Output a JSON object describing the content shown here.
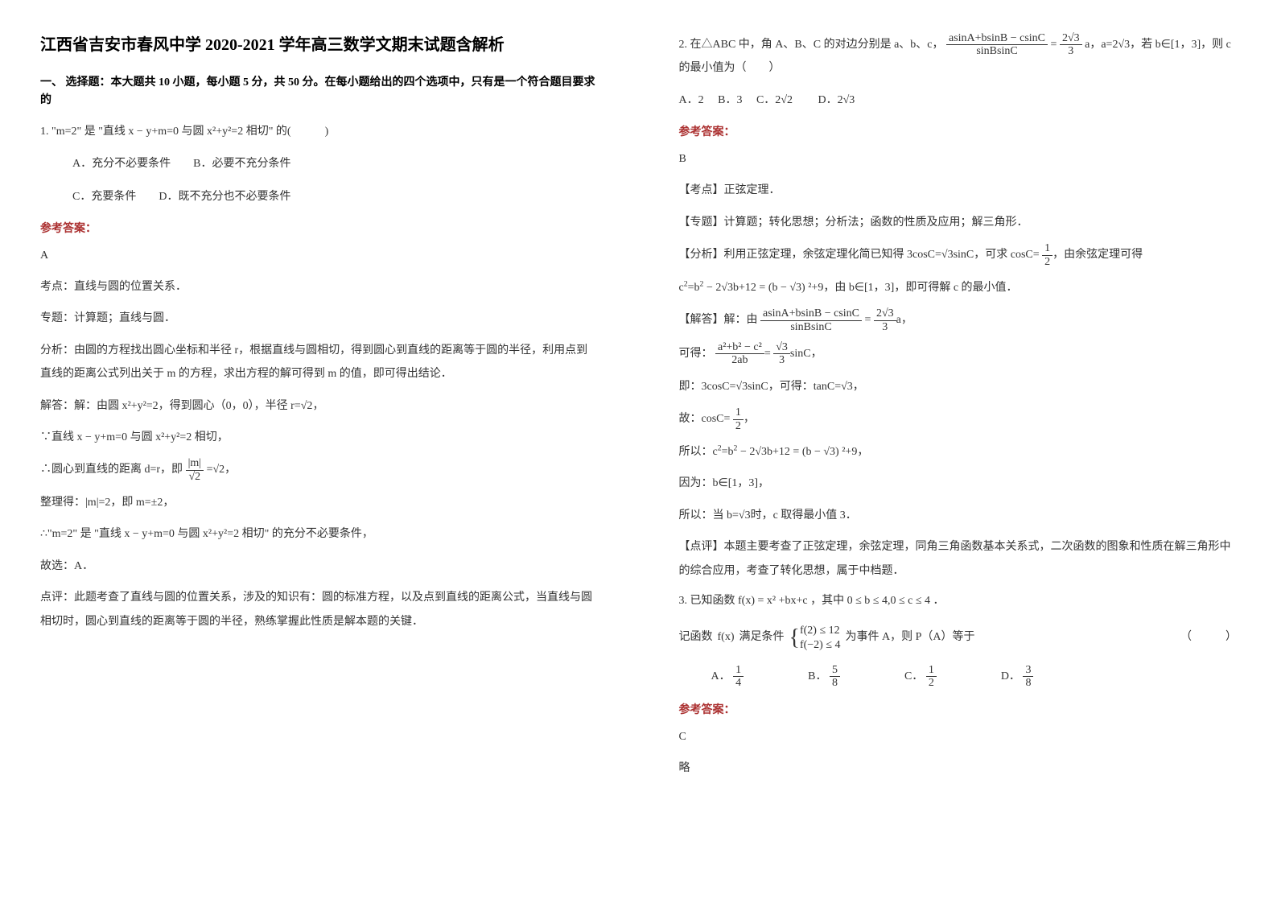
{
  "title": "江西省吉安市春风中学 2020-2021 学年高三数学文期末试题含解析",
  "section1_heading": "一、 选择题：本大题共 10 小题，每小题 5 分，共 50 分。在每小题给出的四个选项中，只有是一个符合题目要求的",
  "q1": {
    "stem": "1. \"m=2\" 是 \"直线 x − y+m=0 与圆 x²+y²=2 相切\" 的(　　　)",
    "optA": "A．充分不必要条件",
    "optB": "B．必要不充分条件",
    "optC": "C．充要条件",
    "optD": "D．既不充分也不必要条件",
    "answer_label": "参考答案：",
    "answer_letter": "A",
    "a1": "考点：直线与圆的位置关系．",
    "a2": "专题：计算题；直线与圆．",
    "a3": "分析：由圆的方程找出圆心坐标和半径 r，根据直线与圆相切，得到圆心到直线的距离等于圆的半径，利用点到直线的距离公式列出关于 m 的方程，求出方程的解可得到 m 的值，即可得出结论．",
    "a4_pre": "解答：解：由圆 x²+y²=2，得到圆心（0，0），半径 r=",
    "a4_sqrt": "√2",
    "a4_post": "，",
    "a5": "∵直线 x − y+m=0 与圆 x²+y²=2 相切，",
    "a6_pre": "∴圆心到直线的距离 d=r，即",
    "a6_frac_num": "|m|",
    "a6_frac_den": "√2",
    "a6_post": "=√2，",
    "a7": "整理得：|m|=2，即 m=±2，",
    "a8": "∴\"m=2\" 是 \"直线 x − y+m=0 与圆 x²+y²=2 相切\" 的充分不必要条件，",
    "a9": "故选：A．",
    "a10": "点评：此题考查了直线与圆的位置关系，涉及的知识有：圆的标准方程，以及点到直线的距离公式，当直线与圆相切时，圆心到直线的距离等于圆的半径，熟练掌握此性质是解本题的关键．"
  },
  "q2": {
    "stem_pre": "2. 在△ABC 中，角 A、B、C 的对边分别是 a、b、c，",
    "frac1_num": "asinA+bsinB − csinC",
    "frac1_den": "sinBsinC",
    "eq": " = ",
    "frac2_num": "2√3",
    "frac2_den": "3",
    "stem_mid": "a，a=2",
    "stem_sqrt": "√3",
    "stem_post": "，若 b∈[1，3]，则 c 的最小值为（　　）",
    "optA": "A．2",
    "optB": "B．3",
    "optC_pre": "C．2",
    "optC_sqrt": "√2",
    "optD_pre": "D．2",
    "optD_sqrt": "√3",
    "answer_label": "参考答案：",
    "answer_letter": "B",
    "k1": "【考点】正弦定理．",
    "k2": "【专题】计算题；转化思想；分析法；函数的性质及应用；解三角形．",
    "k3_pre": "【分析】利用正弦定理，余弦定理化简已知得 3cosC=",
    "k3_sqrt": "√3",
    "k3_mid": "sinC，可求 cosC=",
    "k3_frac_num": "1",
    "k3_frac_den": "2",
    "k3_post": "，由余弦定理可得",
    "k4_pre": "c",
    "k4_sup": "2",
    "k4_eq": "=b",
    "k4_sup2": "2",
    "k4_mid": " − 2√3b+12",
    "k4_post": " = (b − √3) ²+9，由 b∈[1，3]，即可得解 c 的最小值．",
    "k5_pre": "【解答】解：由",
    "k5_frac1_num": "asinA+bsinB − csinC",
    "k5_frac1_den": "sinBsinC",
    "k5_eq": " = ",
    "k5_frac2_num": "2√3",
    "k5_frac2_den": "3",
    "k5_post": "a，",
    "k6_pre": "可得：",
    "k6_frac1_num": "a²+b² − c²",
    "k6_frac1_den": "2ab",
    "k6_eq": "=",
    "k6_frac2_num": "√3",
    "k6_frac2_den": "3",
    "k6_post": "sinC，",
    "k7": "即：3cosC=√3sinC，可得：tanC=√3，",
    "k8_pre": "故：cosC=",
    "k8_frac_num": "1",
    "k8_frac_den": "2",
    "k8_post": "，",
    "k9_pre": "所以：c",
    "k9_sup": "2",
    "k9_eq": "=b",
    "k9_sup2": "2",
    "k9_mid": " − 2√3b+12",
    "k9_post": " = (b − √3) ²+9，",
    "k10": "因为：b∈[1，3]，",
    "k11": "所以：当 b=√3时，c 取得最小值 3．",
    "k12": "【点评】本题主要考查了正弦定理，余弦定理，同角三角函数基本关系式，二次函数的图象和性质在解三角形中的综合应用，考查了转化思想，属于中档题．"
  },
  "q3": {
    "stem_pre": "3. 已知函数",
    "fx": "f(x) = x² +bx+c",
    "stem_mid": "，其中",
    "cond": "0 ≤ b ≤ 4,0 ≤ c ≤ 4",
    "stem_post": "．",
    "line2_pre": "记函数",
    "fx2": "f(x)",
    "line2_mid": "满足条件",
    "sys1": "f(2) ≤ 12",
    "sys2": "f(−2) ≤ 4",
    "line2_post": "为事件 A，则 P（A）等于",
    "paren": "（　　　）",
    "optA_label": "A．",
    "optA_num": "1",
    "optA_den": "4",
    "optB_label": "B．",
    "optB_num": "5",
    "optB_den": "8",
    "optC_label": "C．",
    "optC_num": "1",
    "optC_den": "2",
    "optD_label": "D．",
    "optD_num": "3",
    "optD_den": "8",
    "answer_label": "参考答案：",
    "answer_letter": "C",
    "omit": "略"
  }
}
